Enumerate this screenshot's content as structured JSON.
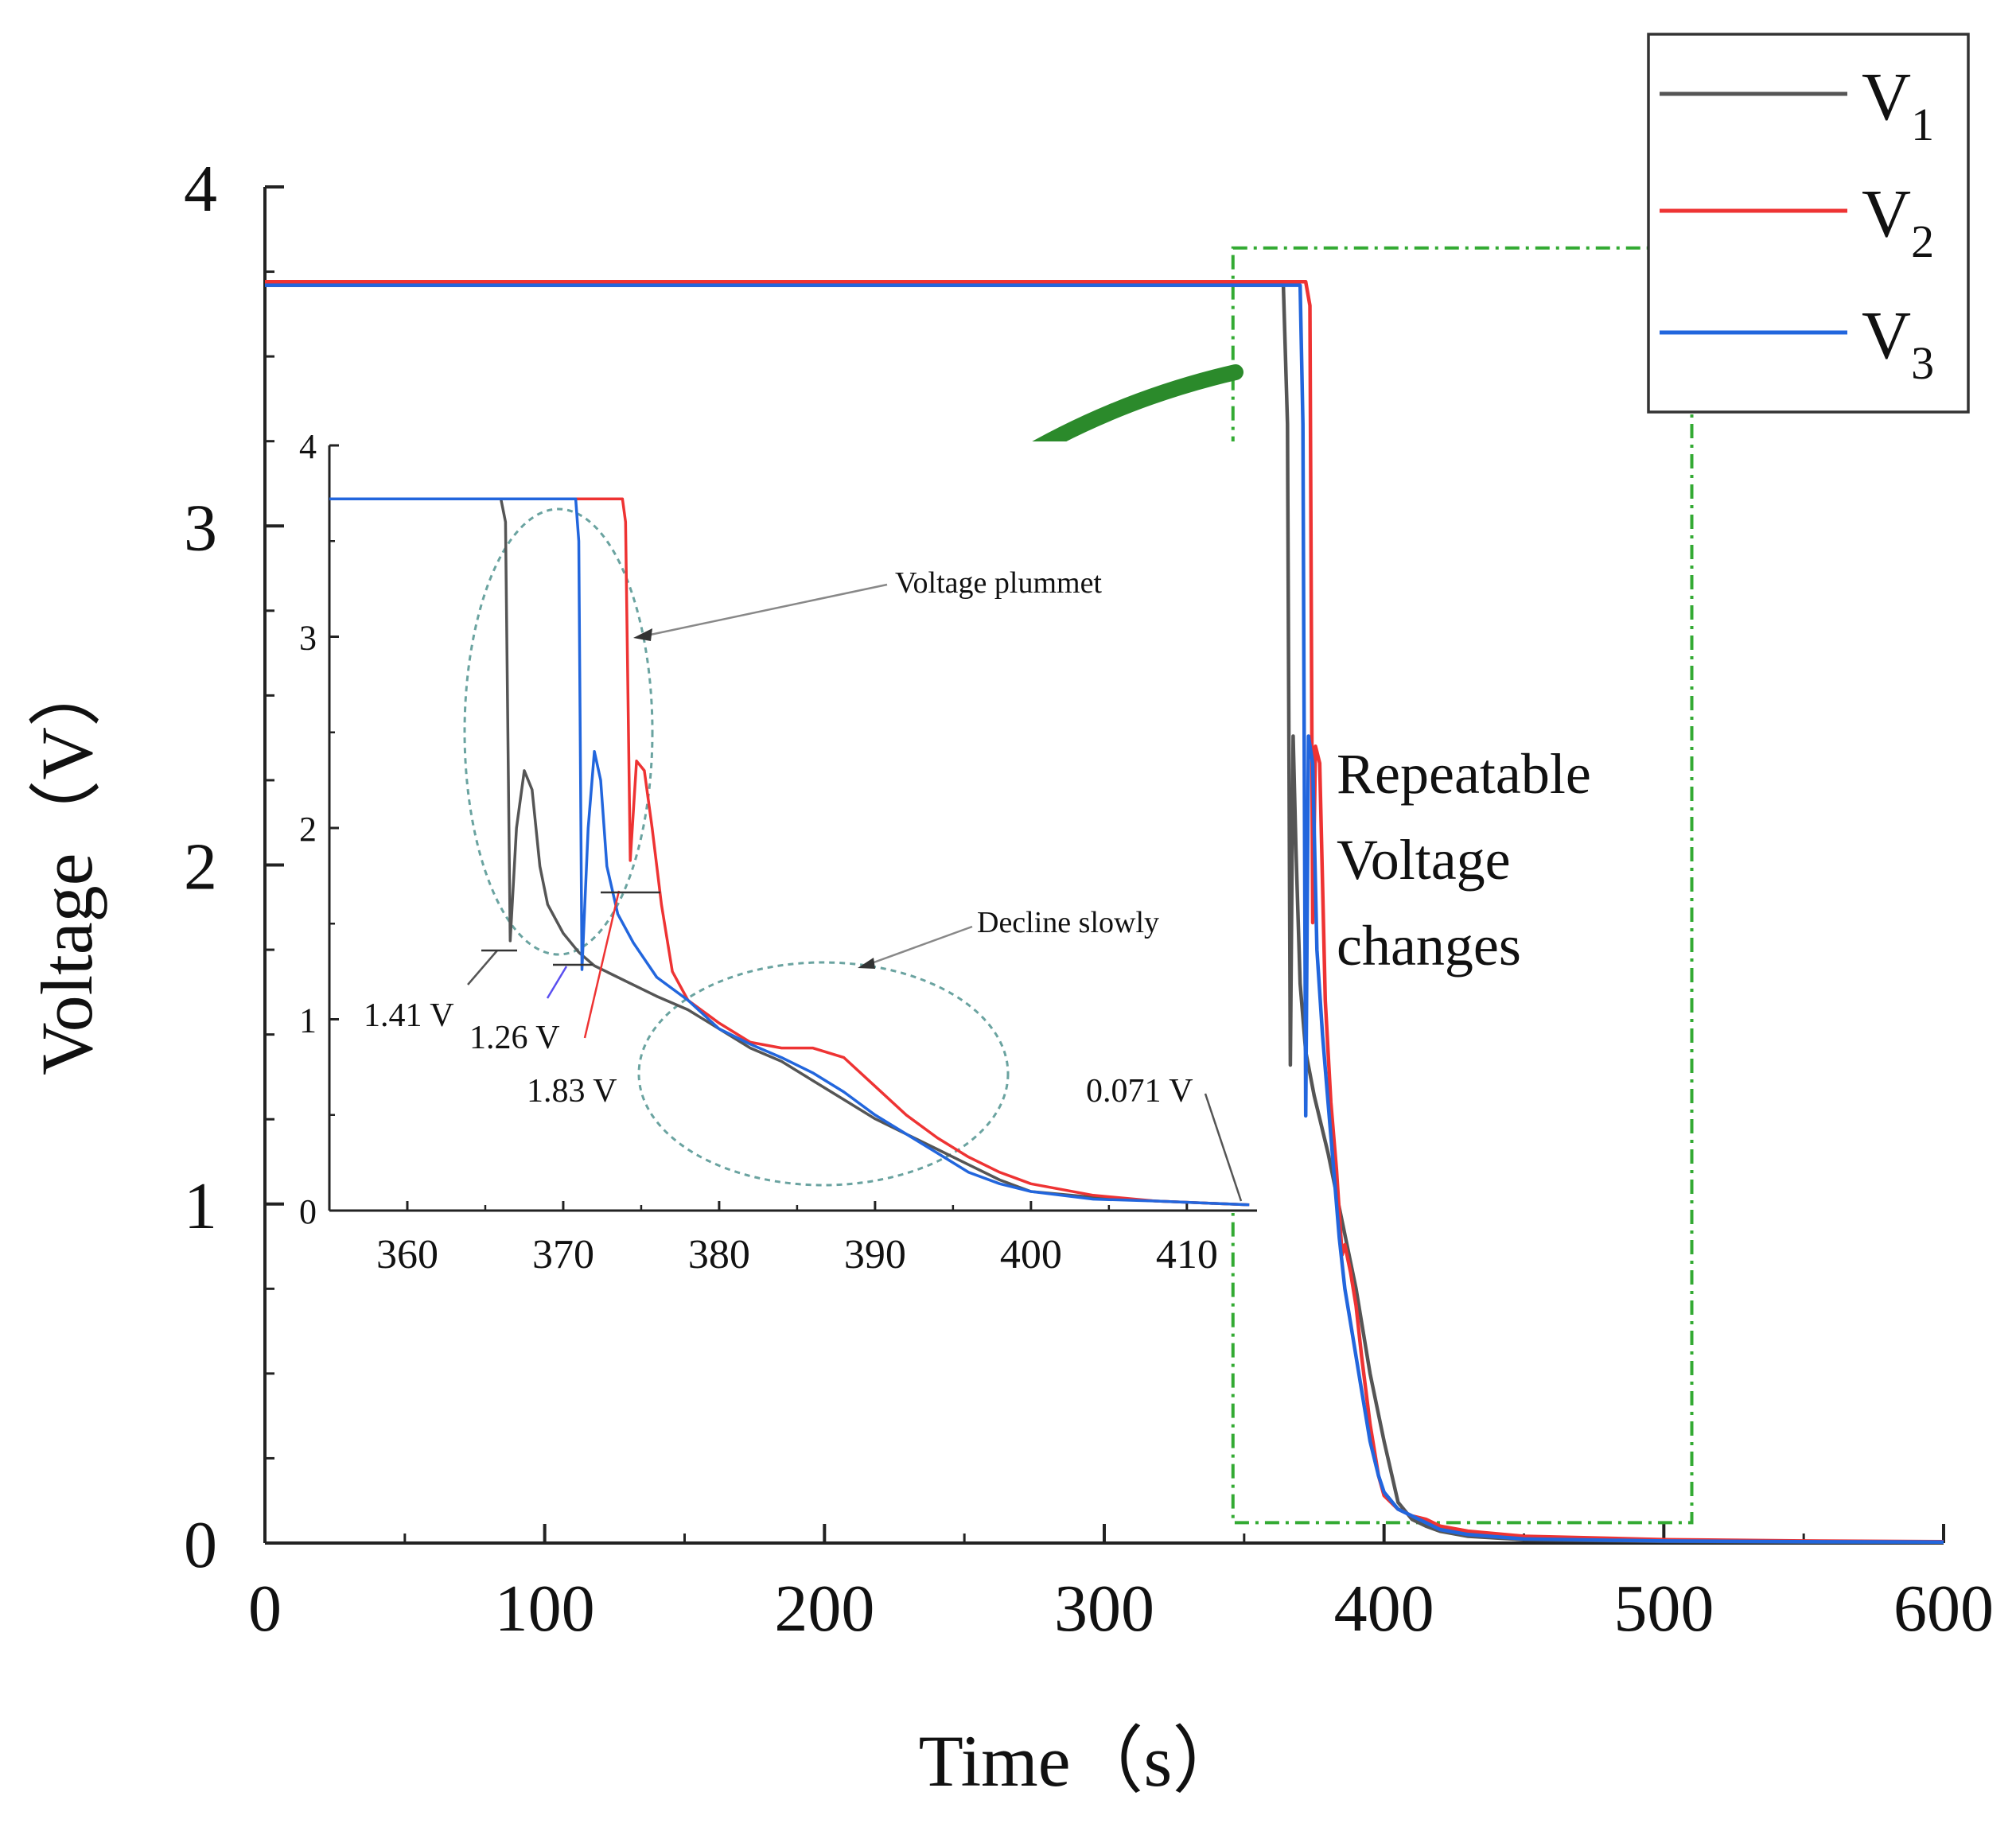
{
  "chart_data": [
    {
      "id": "main",
      "type": "line",
      "title": "",
      "xlabel": "Time（s）",
      "ylabel": "Voltage（V）",
      "xlim": [
        0,
        600
      ],
      "ylim": [
        0,
        4
      ],
      "xticks": [
        0,
        100,
        200,
        300,
        400,
        500,
        600
      ],
      "yticks": [
        0,
        1,
        2,
        3,
        4
      ],
      "xtick_labels": [
        "0",
        "100",
        "200",
        "300",
        "400",
        "500",
        "600"
      ],
      "ytick_labels": [
        "0",
        "1",
        "2",
        "3",
        "4"
      ],
      "grid": false,
      "legend": {
        "position": "top-right",
        "entries": [
          {
            "base": "V",
            "sub": "1"
          },
          {
            "base": "V",
            "sub": "2"
          },
          {
            "base": "V",
            "sub": "3"
          }
        ]
      },
      "series": [
        {
          "name": "V1",
          "color": "#555555",
          "x": [
            0,
            364,
            365.5,
            366.5,
            367.5,
            368.5,
            370,
            372,
            375,
            380,
            385,
            390,
            395,
            400,
            405,
            410,
            415,
            420,
            430,
            450,
            500,
            550,
            600
          ],
          "y": [
            3.71,
            3.71,
            3.3,
            1.41,
            2.38,
            2.05,
            1.65,
            1.45,
            1.32,
            1.15,
            0.95,
            0.75,
            0.5,
            0.3,
            0.12,
            0.07,
            0.05,
            0.035,
            0.02,
            0.01,
            0.005,
            0.003,
            0.002
          ]
        },
        {
          "name": "V2",
          "color": "#ee3333",
          "x": [
            0,
            372,
            373.5,
            374.5,
            375.5,
            377,
            379,
            381,
            383,
            385,
            386,
            388,
            390,
            392,
            395,
            398,
            400,
            405,
            410,
            415,
            420,
            430,
            450,
            500,
            550,
            600
          ],
          "y": [
            3.72,
            3.72,
            3.65,
            1.83,
            2.35,
            2.3,
            1.6,
            1.3,
            1.1,
            0.85,
            0.88,
            0.8,
            0.7,
            0.55,
            0.35,
            0.2,
            0.14,
            0.1,
            0.08,
            0.07,
            0.05,
            0.035,
            0.02,
            0.01,
            0.006,
            0.004
          ]
        },
        {
          "name": "V3",
          "color": "#2266dd",
          "x": [
            0,
            370,
            371,
            372,
            373,
            374.5,
            376,
            378,
            380,
            382,
            384,
            386,
            388,
            390,
            392,
            395,
            398,
            400,
            405,
            410,
            415,
            420,
            430,
            450,
            500,
            550,
            600
          ],
          "y": [
            3.71,
            3.71,
            3.3,
            1.26,
            2.38,
            2.3,
            1.75,
            1.5,
            1.3,
            1.1,
            0.9,
            0.75,
            0.65,
            0.55,
            0.45,
            0.3,
            0.2,
            0.15,
            0.1,
            0.08,
            0.06,
            0.04,
            0.025,
            0.012,
            0.006,
            0.004,
            0.003
          ]
        }
      ],
      "annotations": [
        {
          "lines": [
            "Repeatable",
            "Voltage",
            "changes"
          ]
        }
      ],
      "highlight_box": {
        "x0": 346,
        "x1": 510,
        "y0": 0.06,
        "y1": 3.82,
        "color": "#33aa33"
      }
    },
    {
      "id": "inset",
      "type": "line",
      "xlim": [
        355,
        414.5
      ],
      "ylim": [
        0,
        4
      ],
      "xticks": [
        360,
        370,
        380,
        390,
        400,
        410
      ],
      "yticks": [
        0,
        1,
        2,
        3,
        4
      ],
      "xtick_labels": [
        "360",
        "370",
        "380",
        "390",
        "400",
        "410"
      ],
      "ytick_labels": [
        "0",
        "1",
        "2",
        "3",
        "4"
      ],
      "series": [
        {
          "name": "V1",
          "color": "#555555",
          "x": [
            355,
            366,
            366.3,
            366.6,
            367,
            367.5,
            368,
            368.5,
            369,
            370,
            371,
            372,
            374,
            376,
            378,
            380,
            382,
            384,
            386,
            388,
            390,
            392,
            394,
            396,
            398,
            400,
            404,
            408,
            411,
            414
          ],
          "y": [
            3.72,
            3.72,
            3.6,
            1.41,
            2.0,
            2.3,
            2.2,
            1.8,
            1.6,
            1.45,
            1.35,
            1.28,
            1.2,
            1.12,
            1.05,
            0.95,
            0.85,
            0.78,
            0.68,
            0.58,
            0.48,
            0.4,
            0.32,
            0.24,
            0.16,
            0.1,
            0.07,
            0.05,
            0.04,
            0.03
          ]
        },
        {
          "name": "V2",
          "color": "#ee3333",
          "x": [
            355,
            373.8,
            374,
            374.3,
            374.7,
            375.2,
            375.7,
            376.3,
            377,
            378,
            380,
            382,
            384,
            386,
            388,
            390,
            392,
            394,
            396,
            398,
            400,
            404,
            408,
            411,
            414
          ],
          "y": [
            3.72,
            3.72,
            3.6,
            1.83,
            2.35,
            2.3,
            2.0,
            1.6,
            1.25,
            1.1,
            0.98,
            0.88,
            0.85,
            0.85,
            0.8,
            0.65,
            0.5,
            0.38,
            0.28,
            0.2,
            0.14,
            0.08,
            0.05,
            0.04,
            0.03
          ]
        },
        {
          "name": "V3",
          "color": "#2266dd",
          "x": [
            355,
            370.8,
            371,
            371.2,
            371.6,
            372,
            372.4,
            372.8,
            373.5,
            374.5,
            376,
            378,
            380,
            382,
            384,
            386,
            388,
            390,
            392,
            394,
            396,
            398,
            400,
            404,
            408,
            411,
            414
          ],
          "y": [
            3.72,
            3.72,
            3.5,
            1.26,
            2.0,
            2.4,
            2.25,
            1.8,
            1.55,
            1.4,
            1.22,
            1.1,
            0.95,
            0.87,
            0.8,
            0.72,
            0.62,
            0.5,
            0.4,
            0.3,
            0.2,
            0.14,
            0.1,
            0.06,
            0.05,
            0.04,
            0.03
          ]
        }
      ],
      "annotations": [
        {
          "text": "Voltage plummet"
        },
        {
          "text": "Decline slowly"
        },
        {
          "text": "1.41 V"
        },
        {
          "text": "1.26 V"
        },
        {
          "text": "1.83 V"
        },
        {
          "text": "0.071 V"
        }
      ]
    }
  ]
}
